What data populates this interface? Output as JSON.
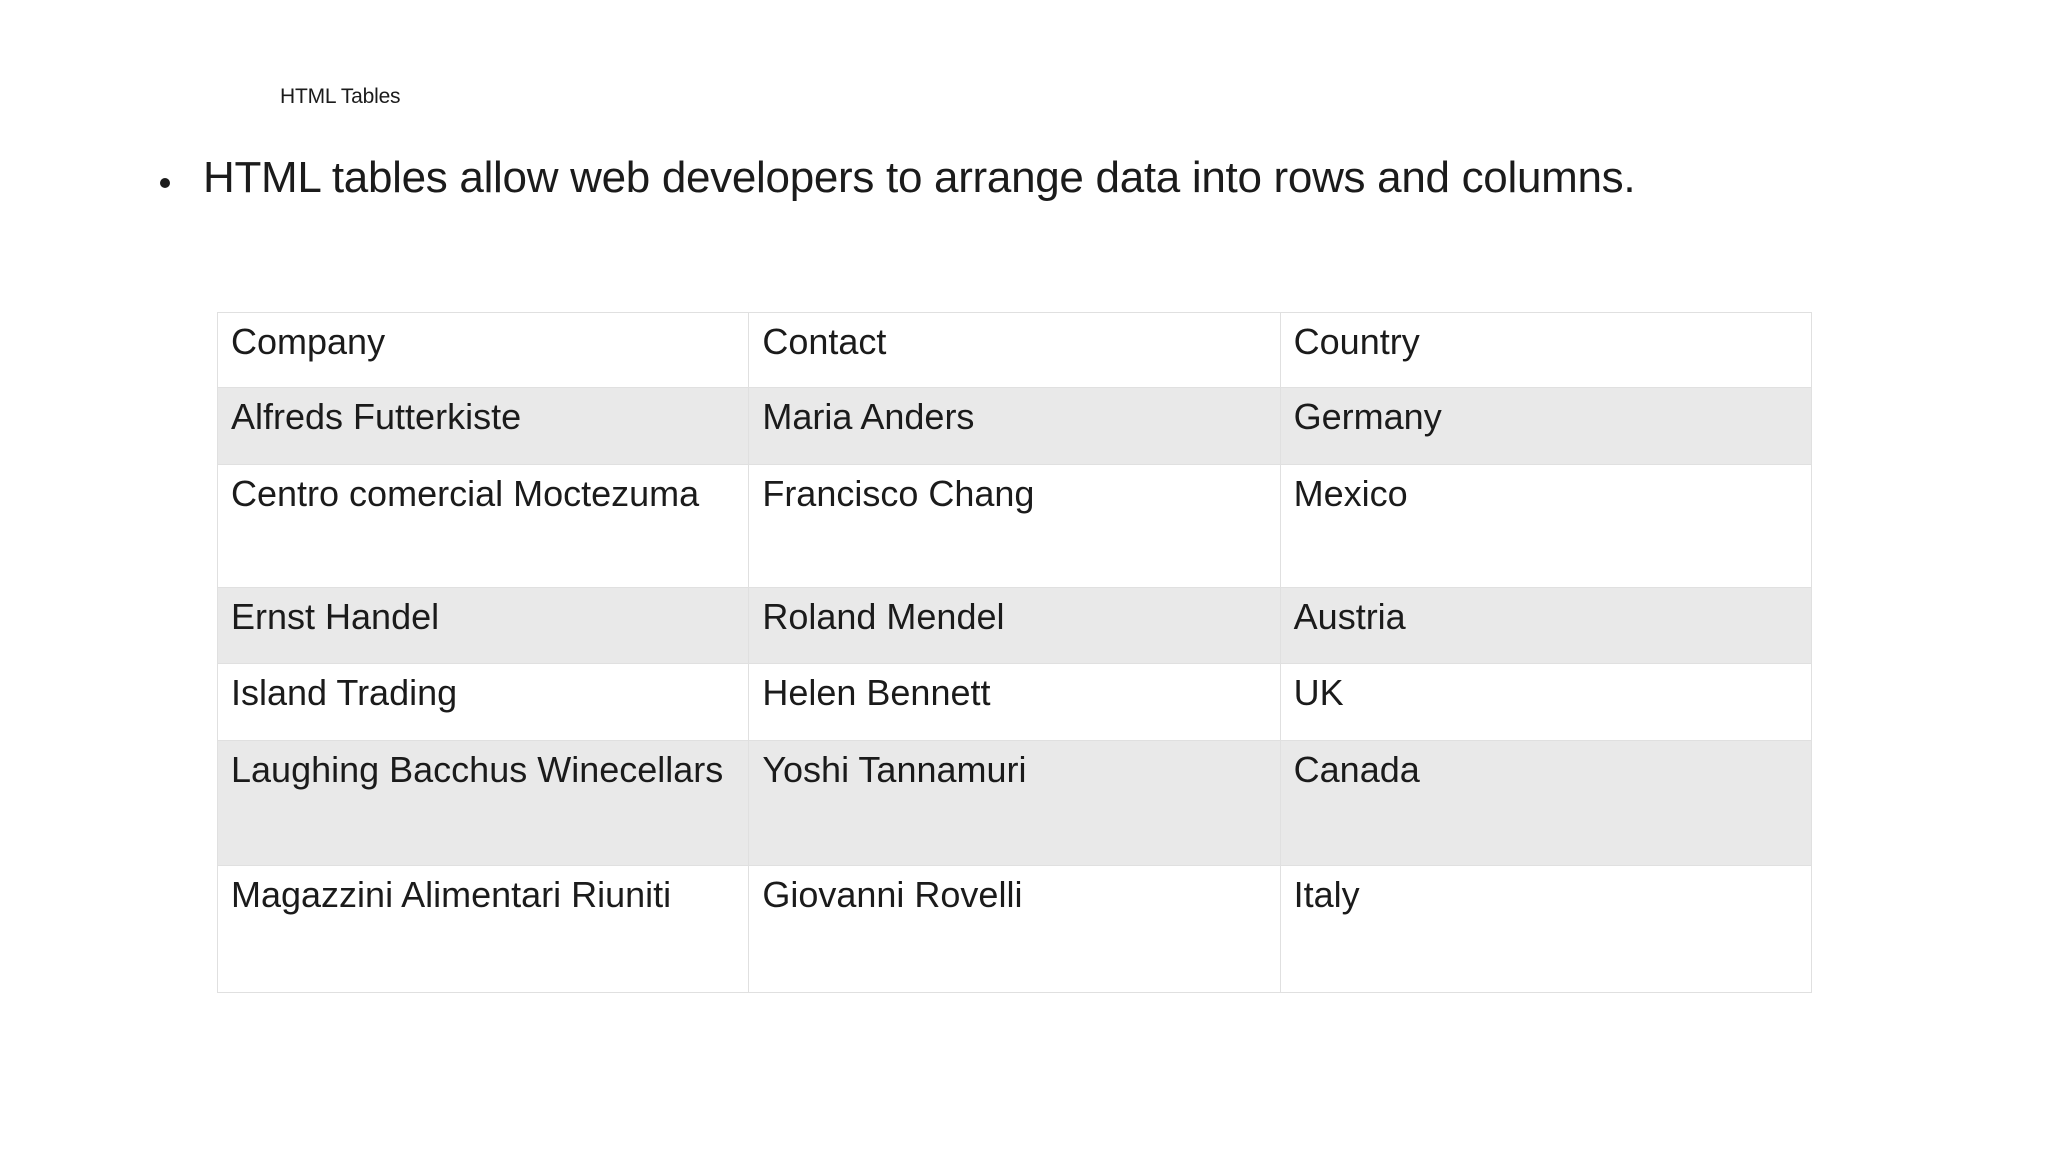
{
  "slide": {
    "title": "HTML Tables",
    "bullet_text": "HTML tables allow web developers to arrange data into rows and columns."
  },
  "table": {
    "columns": [
      "Company",
      "Contact",
      "Country"
    ],
    "rows": [
      [
        "Alfreds Futterkiste",
        "Maria Anders",
        "Germany"
      ],
      [
        "Centro comercial Moctezuma",
        "Francisco Chang",
        "Mexico"
      ],
      [
        "Ernst Handel",
        "Roland Mendel",
        "Austria"
      ],
      [
        "Island Trading",
        "Helen Bennett",
        "UK"
      ],
      [
        "Laughing Bacchus Winecellars",
        "Yoshi Tannamuri",
        "Canada"
      ],
      [
        "Magazzini Alimentari Riuniti",
        "Giovanni Rovelli",
        "Italy"
      ]
    ]
  },
  "colors": {
    "stripe_row_background": "#e9e9e9",
    "cell_border": "#e0e0e0",
    "text": "#1b1b1b",
    "page_background": "#ffffff"
  }
}
